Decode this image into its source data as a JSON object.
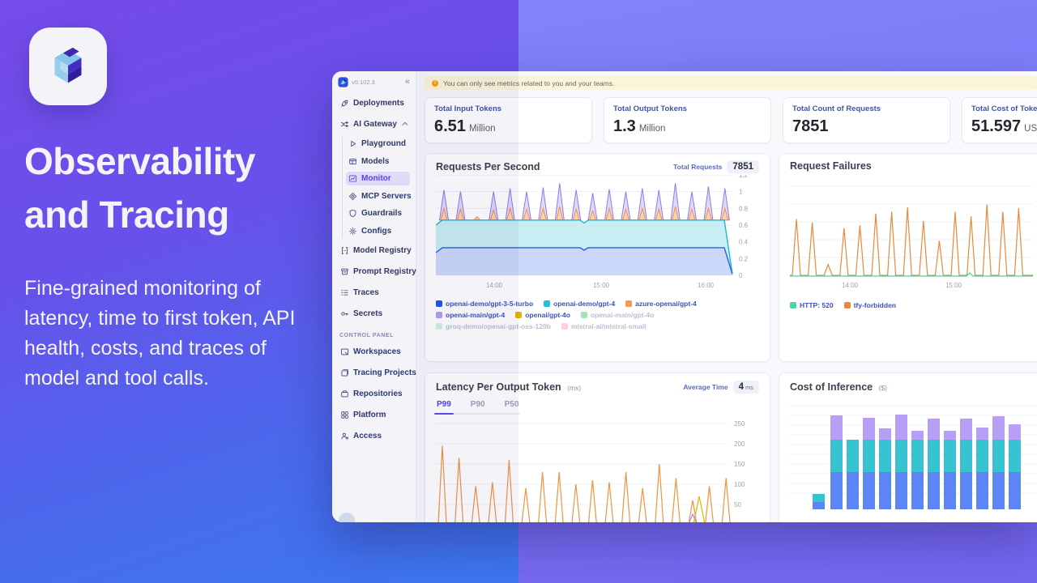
{
  "left_panel": {
    "heading": "Observability and Tracing",
    "description": "Fine-grained monitoring of latency, time to first token, API health, costs, and traces of model and tool calls.",
    "brand_colors": {
      "cube_light": "#8ecdf0",
      "cube_lighter": "#bfe6fa",
      "cube_dark": "#4430c8",
      "cube_darker": "#2f1fa0"
    }
  },
  "dashboard": {
    "sidebar": {
      "version": "v0.102.3",
      "collapse_icon": "«",
      "section_label": "CONTROL PANEL",
      "items_top": [
        {
          "icon": "rocket",
          "label": "Deployments"
        },
        {
          "icon": "gateway",
          "label": "AI Gateway",
          "chevron": "up"
        }
      ],
      "items_sub": [
        {
          "icon": "play",
          "label": "Playground"
        },
        {
          "icon": "table",
          "label": "Models"
        },
        {
          "icon": "monitor",
          "label": "Monitor",
          "active": true
        },
        {
          "icon": "diamond",
          "label": "MCP Servers"
        },
        {
          "icon": "shield",
          "label": "Guardrails"
        },
        {
          "icon": "gear",
          "label": "Configs"
        }
      ],
      "items_mid": [
        {
          "icon": "brackets",
          "label": "Model Registry"
        },
        {
          "icon": "archive",
          "label": "Prompt Registry"
        },
        {
          "icon": "list",
          "label": "Traces"
        },
        {
          "icon": "key",
          "label": "Secrets"
        }
      ],
      "items_bottom": [
        {
          "icon": "workspace",
          "label": "Workspaces"
        },
        {
          "icon": "stack",
          "label": "Tracing Projects"
        },
        {
          "icon": "repo",
          "label": "Repositories"
        },
        {
          "icon": "grid",
          "label": "Platform"
        },
        {
          "icon": "person",
          "label": "Access"
        }
      ]
    },
    "banner": {
      "text": "You can only see metrics related to you and your teams."
    },
    "metrics": [
      {
        "label": "Total Input Tokens",
        "value": "6.51",
        "unit": "Million"
      },
      {
        "label": "Total Output Tokens",
        "value": "1.3",
        "unit": "Million"
      },
      {
        "label": "Total Count of Requests",
        "value": "7851",
        "unit": ""
      },
      {
        "label": "Total Cost of Tokens",
        "value": "51.597",
        "unit": "USD"
      }
    ]
  },
  "chart_data": [
    {
      "id": "requests_per_second",
      "type": "area",
      "title": "Requests Per Second",
      "total_label": "Total Requests",
      "total_value": "7851",
      "ylim": [
        0,
        1.2
      ],
      "y_ticks": [
        0,
        0.2,
        0.4,
        0.6,
        0.8,
        1,
        1.2
      ],
      "x_ticks": [
        "14:00",
        "15:00",
        "16:00"
      ],
      "levels": {
        "blue": 0.33,
        "teal": 0.66
      },
      "colors": {
        "blue": "#2d5be6",
        "blue_fill": "#ccd8fa",
        "teal": "#19b9c9",
        "teal_fill": "#c8eef4",
        "orange": "#f0923f",
        "orange_fill": "#f9d3a6",
        "purple": "#8f7af0",
        "purple_fill": "#d7cbfa"
      },
      "spikes_purple": [
        1.02,
        1.0,
        0,
        1.0,
        1.04,
        1.0,
        1.05,
        1.1,
        1.02,
        0.98,
        1.03,
        1.0,
        1.04,
        1.02,
        1.1,
        1.0,
        1.06,
        1.04
      ],
      "spikes_orange": [
        0.8,
        0.79,
        0.7,
        0.78,
        0.8,
        0.79,
        0.8,
        0.82,
        0.79,
        0.77,
        0.8,
        0.79,
        0.8,
        0.79,
        0.82,
        0.79,
        0.8,
        0.8
      ],
      "legend": [
        {
          "label": "openai-demo/gpt-3-5-turbo",
          "color": "#2457e6",
          "dimmed": false
        },
        {
          "label": "openai-demo/gpt-4",
          "color": "#23c3d4",
          "dimmed": false
        },
        {
          "label": "azure-openai/gpt-4",
          "color": "#f49a56",
          "dimmed": false
        },
        {
          "label": "openai-main/gpt-4",
          "color": "#b59cf6",
          "dimmed": false
        },
        {
          "label": "openai/gpt-4o",
          "color": "#e4b104",
          "dimmed": false
        },
        {
          "label": "openai-main/gpt-4o",
          "color": "#9fe6b5",
          "dimmed": true
        },
        {
          "label": "groq-demo/openai-gpt-oss-120b",
          "color": "#d3f2dd",
          "dimmed": true
        },
        {
          "label": "mistral-ai/mistral-small",
          "color": "#fcd2da",
          "dimmed": true
        }
      ]
    },
    {
      "id": "request_failures",
      "type": "line",
      "title": "Request Failures",
      "x_ticks": [
        "14:00",
        "15:00"
      ],
      "colors": {
        "orange": "#e8893b",
        "teal": "#46d7ad"
      },
      "spikes": [
        0.62,
        0.58,
        0.12,
        0.52,
        0.55,
        0.68,
        0.7,
        0.75,
        0.6,
        0.38,
        0.7,
        0.65,
        0.78,
        0.7,
        0.74
      ],
      "teal_bump_x": 222,
      "legend": [
        {
          "label": "HTTP: 520",
          "color": "#46d7ad",
          "dimmed": false
        },
        {
          "label": "tfy-forbidden",
          "color": "#e8893b",
          "dimmed": false
        }
      ]
    },
    {
      "id": "latency_per_output_token",
      "type": "line",
      "title": "Latency Per Output Token",
      "unit": "(ms)",
      "tabs": [
        "P99",
        "P90",
        "P50"
      ],
      "active_tab": "P99",
      "average_label": "Average Time",
      "average_value": "4",
      "average_unit": "ms",
      "ylim": [
        0,
        260
      ],
      "y_ticks": [
        50,
        100,
        150,
        200,
        250
      ],
      "colors": {
        "orange": "#f0943f",
        "yellow": "#e0b404",
        "purple": "#a48af2"
      },
      "spikes_ms": [
        195,
        165,
        95,
        105,
        160,
        90,
        130,
        130,
        100,
        110,
        105,
        130,
        90,
        150,
        115,
        60,
        95,
        115
      ],
      "yellow_spike": {
        "x": 325,
        "ms": 70
      },
      "purple_spike": {
        "x": 317,
        "ms": 26
      }
    },
    {
      "id": "cost_of_inference",
      "type": "stacked-bar",
      "title": "Cost of Inference",
      "unit": "($)",
      "colors": {
        "blue": "#5c86f5",
        "teal": "#38c3d3",
        "purple": "#b79ef7"
      },
      "first_bar": {
        "blue": 9,
        "teal": 10,
        "purple": 0
      },
      "bars": [
        {
          "blue": 46,
          "teal": 40,
          "purple": 30
        },
        {
          "blue": 46,
          "teal": 40,
          "purple": 0
        },
        {
          "blue": 46,
          "teal": 40,
          "purple": 27
        },
        {
          "blue": 46,
          "teal": 40,
          "purple": 14
        },
        {
          "blue": 46,
          "teal": 40,
          "purple": 31
        },
        {
          "blue": 46,
          "teal": 40,
          "purple": 11
        },
        {
          "blue": 46,
          "teal": 40,
          "purple": 26
        },
        {
          "blue": 46,
          "teal": 40,
          "purple": 11
        },
        {
          "blue": 46,
          "teal": 40,
          "purple": 26
        },
        {
          "blue": 46,
          "teal": 40,
          "purple": 15
        },
        {
          "blue": 46,
          "teal": 40,
          "purple": 29
        },
        {
          "blue": 46,
          "teal": 40,
          "purple": 19
        }
      ]
    }
  ]
}
